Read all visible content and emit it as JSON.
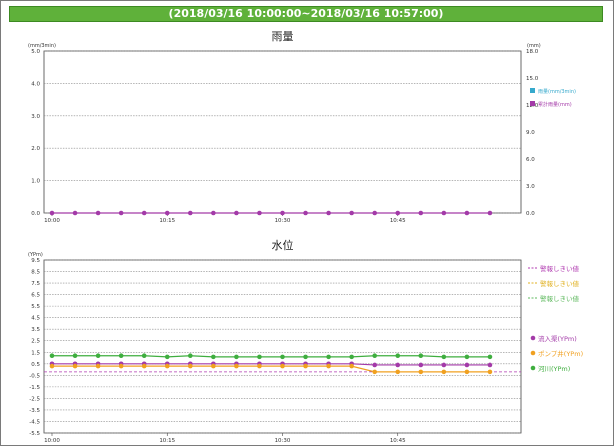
{
  "header": {
    "range": "(2018/03/16 10:00:00~2018/03/16 10:57:00)"
  },
  "colors": {
    "header_bar": "#5fb13a"
  },
  "chart_data": [
    {
      "type": "line",
      "title": "雨量",
      "left_unit": "(mm/3min)",
      "right_unit": "(mm)",
      "ylim": [
        0.0,
        5.0
      ],
      "y2lim": [
        0.0,
        18.0
      ],
      "y_ticks": [
        "5.0",
        "4.0",
        "3.0",
        "2.0",
        "1.0",
        "0.0"
      ],
      "y2_ticks": [
        "18.0",
        "15.0",
        "12.0",
        "9.0",
        "6.0",
        "3.0",
        "0.0"
      ],
      "x_ticks": [
        "10:00",
        "10:15",
        "10:30",
        "10:45"
      ],
      "x": [
        0,
        3,
        6,
        9,
        12,
        15,
        18,
        21,
        24,
        27,
        30,
        33,
        36,
        39,
        42,
        45,
        48,
        51,
        54,
        57
      ],
      "legend": [
        {
          "name": "雨量(mm/3min)",
          "color": "#36a9cc"
        },
        {
          "name": "累計雨量(mm)",
          "color": "#a33aa8"
        }
      ],
      "series": [
        {
          "name": "累計雨量(mm)",
          "color": "#a33aa8",
          "values": [
            0,
            0,
            0,
            0,
            0,
            0,
            0,
            0,
            0,
            0,
            0,
            0,
            0,
            0,
            0,
            0,
            0,
            0,
            0,
            0
          ]
        }
      ]
    },
    {
      "type": "line",
      "title": "水位",
      "left_unit": "(YPm)",
      "ylim": [
        -5.5,
        9.5
      ],
      "y_ticks": [
        "9.5",
        "8.5",
        "7.5",
        "6.5",
        "5.5",
        "4.5",
        "3.5",
        "2.5",
        "1.5",
        "0.5",
        "-0.5",
        "-1.5",
        "-2.5",
        "-3.5",
        "-4.5",
        "-5.5"
      ],
      "x_ticks": [
        "10:00",
        "10:15",
        "10:30",
        "10:45"
      ],
      "x": [
        0,
        3,
        6,
        9,
        12,
        15,
        18,
        21,
        24,
        27,
        30,
        33,
        36,
        39,
        42,
        45,
        48,
        51,
        54,
        57
      ],
      "thresholds": [
        {
          "name": "警報しきい値",
          "color": "#b03ab0",
          "value": -0.2
        }
      ],
      "threshold_legend": [
        {
          "name": "警報しきい値",
          "color": "#b03ab0"
        },
        {
          "name": "警報しきい値",
          "color": "#e0b020"
        },
        {
          "name": "警報しきい値",
          "color": "#5cb85c"
        }
      ],
      "series": [
        {
          "name": "流入渠(YPm)",
          "color": "#a33aa8",
          "values": [
            0.5,
            0.5,
            0.5,
            0.5,
            0.5,
            0.5,
            0.5,
            0.5,
            0.5,
            0.5,
            0.5,
            0.5,
            0.5,
            0.5,
            0.4,
            0.4,
            0.4,
            0.4,
            0.4,
            0.4
          ]
        },
        {
          "name": "ポンプ井(YPm)",
          "color": "#f0a020",
          "values": [
            0.3,
            0.3,
            0.3,
            0.3,
            0.3,
            0.3,
            0.3,
            0.3,
            0.3,
            0.3,
            0.3,
            0.3,
            0.3,
            0.3,
            -0.2,
            -0.2,
            -0.2,
            -0.2,
            -0.2,
            -0.2
          ]
        },
        {
          "name": "河川(YPm)",
          "color": "#3fae3f",
          "values": [
            1.2,
            1.2,
            1.2,
            1.2,
            1.2,
            1.1,
            1.2,
            1.1,
            1.1,
            1.1,
            1.1,
            1.1,
            1.1,
            1.1,
            1.2,
            1.2,
            1.2,
            1.1,
            1.1,
            1.1
          ]
        }
      ]
    }
  ]
}
